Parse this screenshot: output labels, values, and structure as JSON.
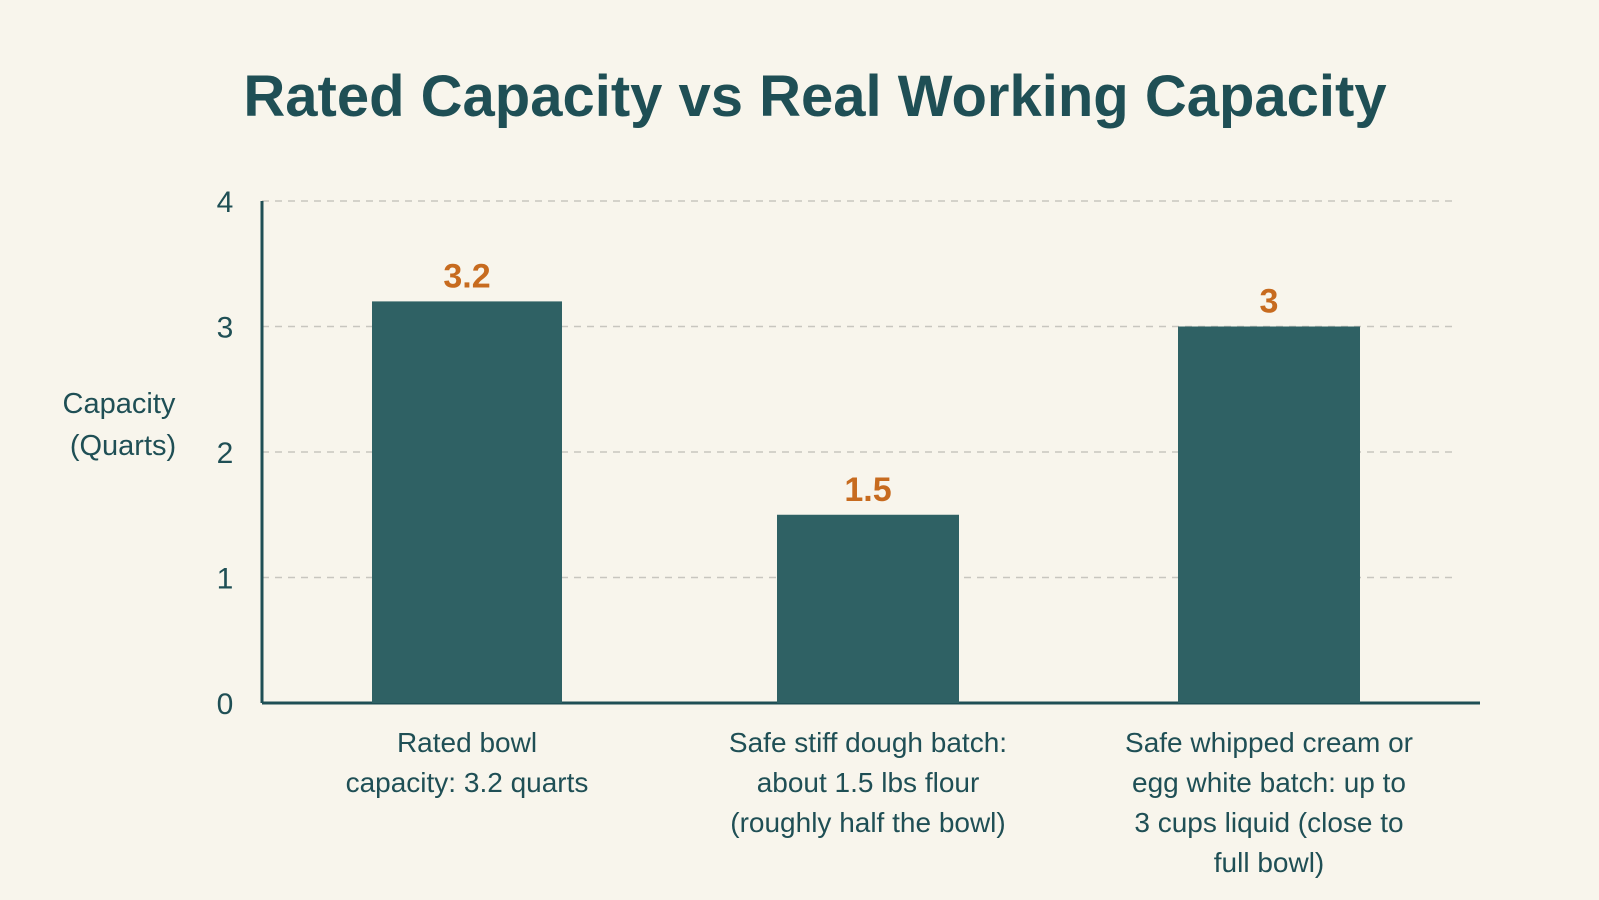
{
  "chart_data": {
    "type": "bar",
    "title": "Rated Capacity vs Real Working Capacity",
    "ylabel": "Capacity (Quarts)",
    "ylabel_lines": [
      "Capacity",
      "(Quarts)"
    ],
    "xlabel": "",
    "ylim": [
      0,
      4
    ],
    "yticks": [
      0,
      1,
      2,
      3,
      4
    ],
    "grid": true,
    "categories": [
      [
        "Rated bowl",
        "capacity: 3.2 quarts"
      ],
      [
        "Safe stiff dough batch:",
        "about 1.5 lbs flour",
        "(roughly half the bowl)"
      ],
      [
        "Safe whipped cream or",
        "egg white batch: up to",
        "3 cups liquid (close to",
        "full bowl)"
      ]
    ],
    "values": [
      3.2,
      1.5,
      3
    ],
    "data_labels": [
      "3.2",
      "1.5",
      "3"
    ],
    "colors": {
      "background": "#f8f5ec",
      "bar": "#2f6164",
      "text": "#1f4f55",
      "value_label": "#c76b1f",
      "grid": "#c8c6bf",
      "axis": "#1f4f55"
    }
  }
}
